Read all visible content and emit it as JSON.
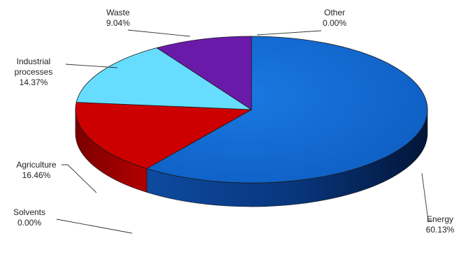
{
  "chart_data": {
    "type": "pie",
    "variant": "3d-perspective",
    "title": "",
    "legend": "none",
    "slices": [
      {
        "label": "Energy",
        "value": 60.13,
        "value_text": "60.13%",
        "color": "#1570d8"
      },
      {
        "label": "Agriculture",
        "value": 16.46,
        "value_text": "16.46%",
        "color": "#cc0000"
      },
      {
        "label": "Industrial processes",
        "label_lines": [
          "Industrial",
          "processes"
        ],
        "value": 14.37,
        "value_text": "14.37%",
        "color": "#66ddff"
      },
      {
        "label": "Waste",
        "value": 9.04,
        "value_text": "9.04%",
        "color": "#6a1aa8"
      },
      {
        "label": "Other",
        "value": 0.0,
        "value_text": "0.00%",
        "color": "#999999"
      },
      {
        "label": "Solvents",
        "value": 0.0,
        "value_text": "0.00%",
        "color": "#999999"
      }
    ]
  }
}
